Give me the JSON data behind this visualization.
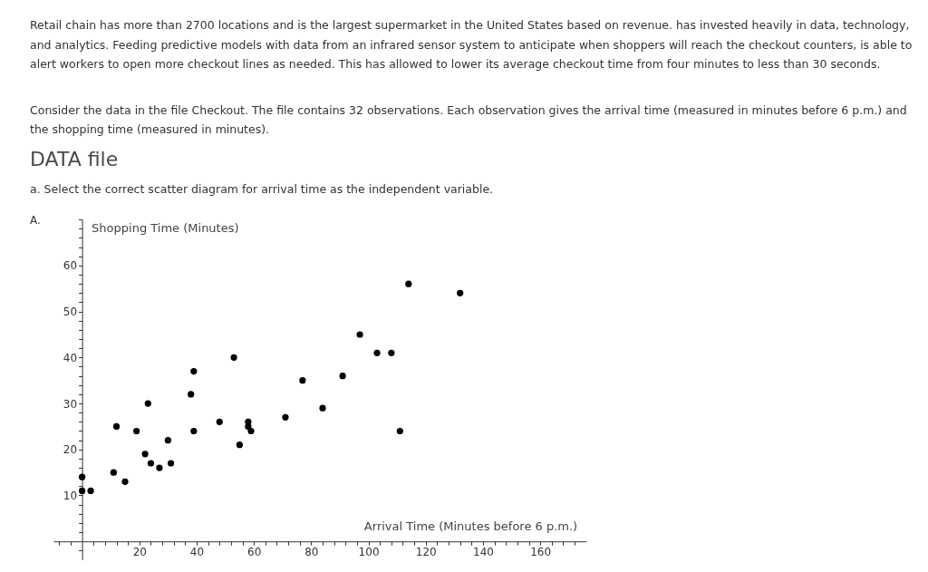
{
  "chart_data": {
    "type": "scatter",
    "xlabel": "Arrival Time (Minutes before 6 p.m.)",
    "ylabel": "Shopping Time (Minutes)",
    "annotations": [
      "Retail chain has more than 2700 locations and is the largest supermarket in the United States based on revenue. has invested heavily in data, technology, and analytics. Feeding predictive models with data from an infrared sensor system to anticipate when shoppers will reach the checkout counters, is able to alert workers to open more checkout lines as needed. This has allowed to lower its average checkout time from four minutes to less than 30 seconds.",
      "Consider the data in the file Checkout. The file contains 32 observations. Each observation gives the arrival time (measured in minutes before 6 p.m.) and the shopping time (measured in minutes).",
      "DATA file",
      "a. Select the correct scatter diagram for arrival time as the independent variable.",
      "A."
    ],
    "x": [
      0,
      0,
      3,
      11,
      12,
      15,
      19,
      22,
      23,
      24,
      27,
      30,
      31,
      38,
      39,
      39,
      48,
      53,
      55,
      58,
      58,
      59,
      71,
      77,
      84,
      91,
      97,
      103,
      108,
      111,
      114,
      132
    ],
    "values": [
      14,
      11,
      11,
      15,
      25,
      13,
      24,
      19,
      30,
      17,
      16,
      22,
      17,
      32,
      37,
      24,
      26,
      40,
      21,
      26,
      25,
      24,
      27,
      35,
      29,
      36,
      45,
      41,
      41,
      24,
      56,
      54
    ],
    "color": "#000000",
    "marker": "circle",
    "xlim": [
      -10,
      176
    ],
    "ylim": [
      -4,
      70
    ],
    "xticks": [
      {
        "value": -8,
        "label": null
      },
      {
        "value": -4,
        "label": null
      },
      {
        "value": 4,
        "label": null
      },
      {
        "value": 8,
        "label": null
      },
      {
        "value": 12,
        "label": null
      },
      {
        "value": 16,
        "label": null
      },
      20,
      {
        "value": 24,
        "label": null
      },
      {
        "value": 28,
        "label": null
      },
      {
        "value": 32,
        "label": null
      },
      {
        "value": 36,
        "label": null
      },
      40,
      {
        "value": 44,
        "label": null
      },
      {
        "value": 48,
        "label": null
      },
      {
        "value": 52,
        "label": null
      },
      {
        "value": 56,
        "label": null
      },
      60,
      {
        "value": 64,
        "label": null
      },
      {
        "value": 68,
        "label": null
      },
      {
        "value": 72,
        "label": null
      },
      {
        "value": 76,
        "label": null
      },
      80,
      {
        "value": 84,
        "label": null
      },
      {
        "value": 88,
        "label": null
      },
      {
        "value": 92,
        "label": null
      },
      {
        "value": 96,
        "label": null
      },
      100,
      {
        "value": 104,
        "label": null
      },
      {
        "value": 108,
        "label": null
      },
      {
        "value": 112,
        "label": null
      },
      {
        "value": 116,
        "label": null
      },
      120,
      {
        "value": 124,
        "label": null
      },
      {
        "value": 128,
        "label": null
      },
      {
        "value": 132,
        "label": null
      },
      {
        "value": 136,
        "label": null
      },
      140,
      {
        "value": 144,
        "label": null
      },
      {
        "value": 148,
        "label": null
      },
      {
        "value": 152,
        "label": null
      },
      {
        "value": 156,
        "label": null
      },
      160,
      {
        "value": 164,
        "label": null
      },
      {
        "value": 168,
        "label": null
      },
      {
        "value": 172,
        "label": null
      }
    ],
    "yticks": [
      {
        "value": -2,
        "label": null
      },
      {
        "value": 2,
        "label": null
      },
      {
        "value": 4,
        "label": null
      },
      {
        "value": 6,
        "label": null
      },
      {
        "value": 8,
        "label": null
      },
      10,
      {
        "value": 12,
        "label": null
      },
      {
        "value": 14,
        "label": null
      },
      {
        "value": 16,
        "label": null
      },
      {
        "value": 18,
        "label": null
      },
      20,
      {
        "value": 22,
        "label": null
      },
      {
        "value": 24,
        "label": null
      },
      {
        "value": 26,
        "label": null
      },
      {
        "value": 28,
        "label": null
      },
      30,
      {
        "value": 32,
        "label": null
      },
      {
        "value": 34,
        "label": null
      },
      {
        "value": 36,
        "label": null
      },
      {
        "value": 38,
        "label": null
      },
      40,
      {
        "value": 42,
        "label": null
      },
      {
        "value": 44,
        "label": null
      },
      {
        "value": 46,
        "label": null
      },
      {
        "value": 48,
        "label": null
      },
      50,
      {
        "value": 52,
        "label": null
      },
      {
        "value": 54,
        "label": null
      },
      {
        "value": 56,
        "label": null
      },
      {
        "value": 58,
        "label": null
      },
      60,
      {
        "value": 62,
        "label": null
      },
      {
        "value": 64,
        "label": null
      },
      {
        "value": 66,
        "label": null
      },
      {
        "value": 68,
        "label": null
      },
      {
        "value": 70,
        "label": null
      }
    ]
  }
}
